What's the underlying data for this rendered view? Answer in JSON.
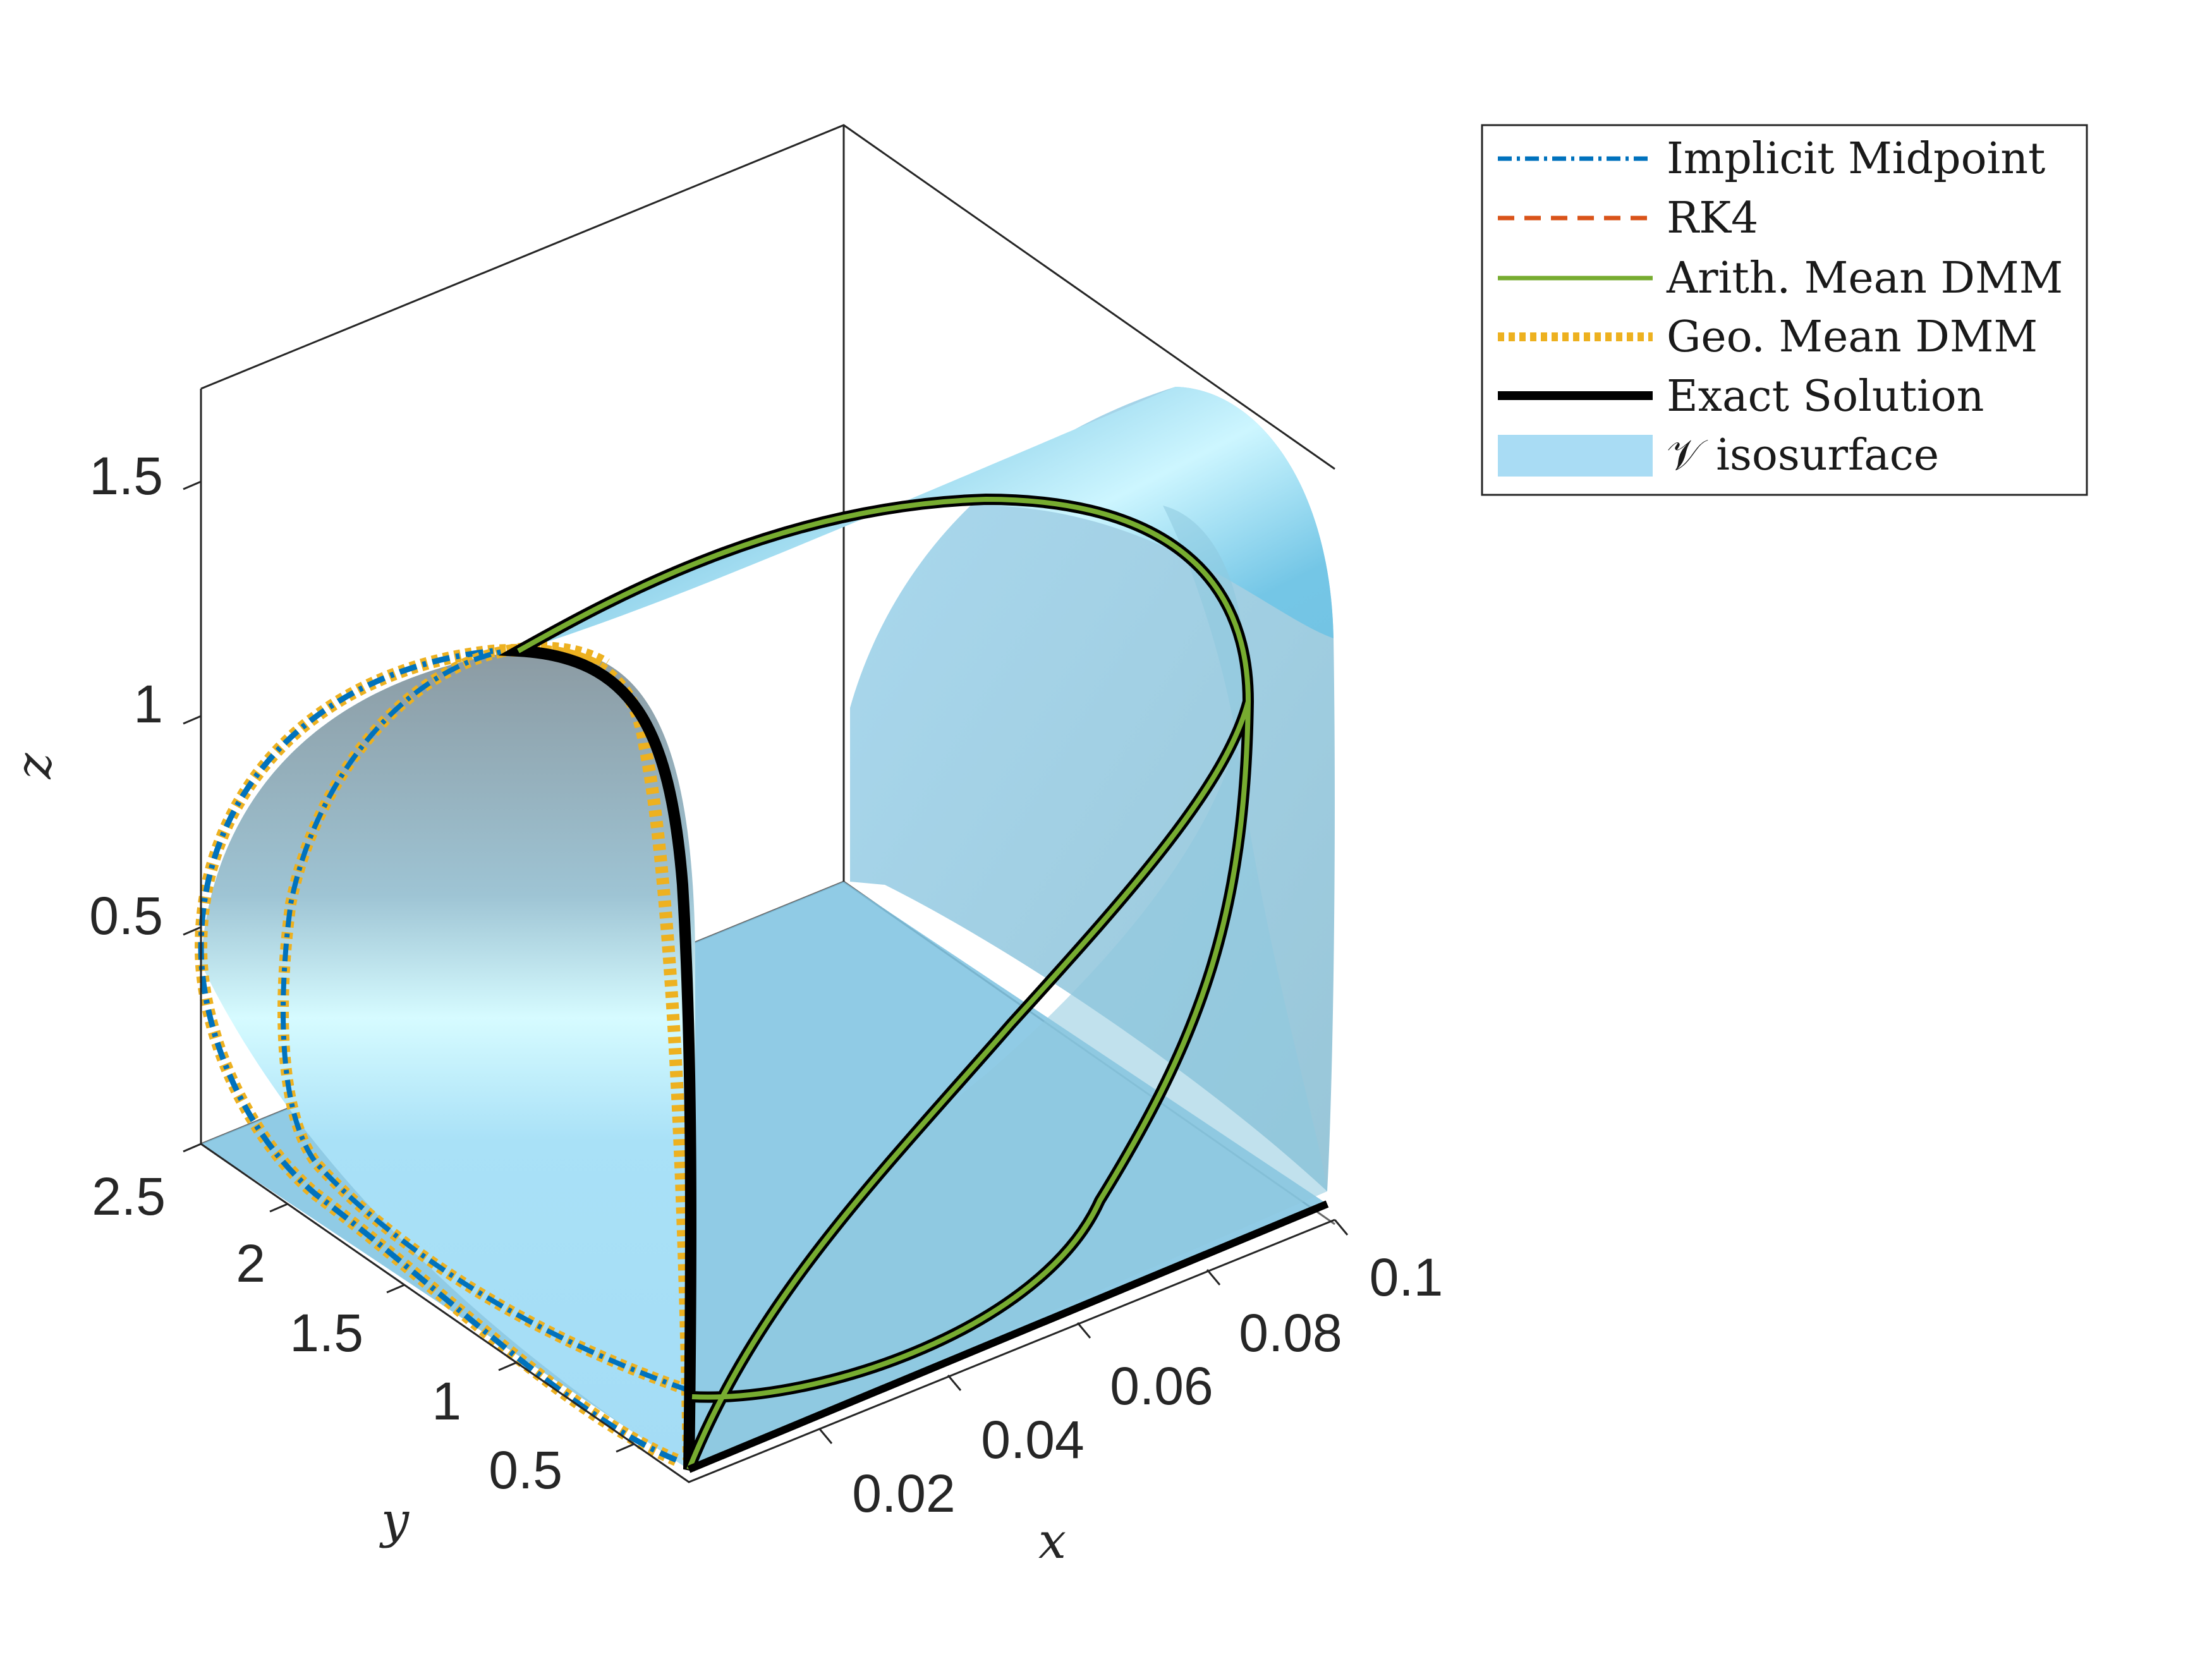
{
  "chart_data": {
    "type": "line",
    "projection": "3d",
    "xlabel": "x",
    "ylabel": "y",
    "zlabel": "z",
    "xlim": [
      0,
      0.1
    ],
    "ylim": [
      0.2,
      2.5
    ],
    "zlim": [
      0.1,
      1.7
    ],
    "x_ticks": [
      "0.02",
      "0.04",
      "0.06",
      "0.08",
      "0.1"
    ],
    "y_ticks": [
      "0.5",
      "1",
      "1.5",
      "2",
      "2.5"
    ],
    "z_ticks": [
      "0.5",
      "1",
      "1.5"
    ],
    "grid": false,
    "legend_position": "outside-top-right",
    "series": [
      {
        "name": "Implicit Midpoint",
        "color": "#0072BD",
        "style": "dash-dot"
      },
      {
        "name": "RK4",
        "color": "#D95319",
        "style": "dashed"
      },
      {
        "name": "Arith. Mean DMM",
        "color": "#77AC30",
        "style": "solid"
      },
      {
        "name": "Geo. Mean DMM",
        "color": "#EDB120",
        "style": "dotted"
      },
      {
        "name": "Exact Solution",
        "color": "#000000",
        "style": "solid-thick"
      },
      {
        "name": " isosurface",
        "symbol": "𝒱",
        "color": "#A9DCF4",
        "style": "patch"
      }
    ],
    "curves": [
      {
        "id": "trajectory-left",
        "x": 0.0,
        "y_range": [
          0.3,
          2.5
        ],
        "z_range": [
          0.1,
          1.15
        ]
      },
      {
        "id": "trajectory-mid",
        "x": 0.0,
        "y_range": [
          0.3,
          2.2
        ],
        "z_range": [
          0.1,
          1.15
        ]
      },
      {
        "id": "trajectory-right",
        "x": 0.1,
        "y_range": [
          0.2,
          1.2
        ],
        "z_range": [
          0.1,
          1.45
        ]
      }
    ]
  }
}
